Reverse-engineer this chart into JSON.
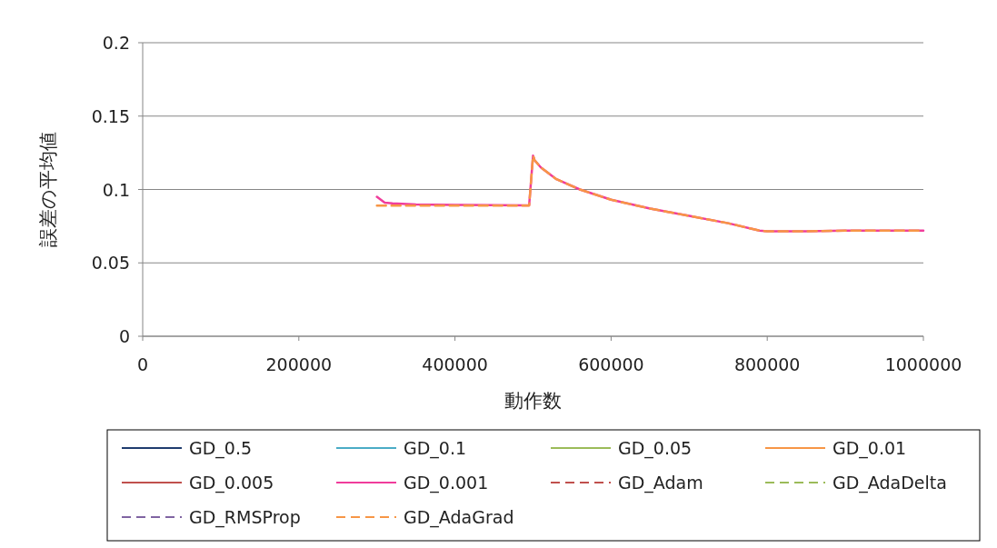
{
  "chart_data": {
    "type": "line",
    "xlabel": "動作数",
    "ylabel": "誤差の平均値",
    "xlim": [
      0,
      1000000
    ],
    "xticks": [
      0,
      200000,
      400000,
      600000,
      800000,
      1000000
    ],
    "ylim": [
      0,
      0.2
    ],
    "yticks": [
      0,
      0.05,
      0.1,
      0.15,
      0.2
    ],
    "grid": "y",
    "legend": "bottom",
    "marker": "none",
    "x": [
      300000,
      310000,
      320000,
      350000,
      400000,
      450000,
      495000,
      500000,
      502000,
      510000,
      530000,
      560000,
      600000,
      650000,
      700000,
      750000,
      790000,
      800000,
      850000,
      900000,
      950000,
      1000000
    ],
    "series": [
      {
        "name": "GD_0.5",
        "color": "#1f3c6e",
        "line_style": "solid",
        "values": [
          null,
          null,
          null,
          null,
          null,
          null,
          null,
          null,
          null,
          null,
          null,
          null,
          null,
          null,
          null,
          null,
          null,
          null,
          null,
          null,
          null,
          null
        ]
      },
      {
        "name": "GD_0.1",
        "color": "#4bacc6",
        "line_style": "solid",
        "values": [
          null,
          null,
          null,
          null,
          null,
          null,
          null,
          null,
          null,
          null,
          null,
          null,
          null,
          null,
          null,
          null,
          null,
          null,
          null,
          null,
          null,
          null
        ]
      },
      {
        "name": "GD_0.05",
        "color": "#9bbb59",
        "line_style": "solid",
        "values": [
          null,
          null,
          null,
          null,
          null,
          null,
          null,
          null,
          null,
          null,
          null,
          null,
          null,
          null,
          null,
          null,
          null,
          null,
          null,
          null,
          null,
          null
        ]
      },
      {
        "name": "GD_0.01",
        "color": "#f79646",
        "line_style": "solid",
        "values": [
          null,
          null,
          null,
          null,
          null,
          null,
          null,
          null,
          null,
          null,
          null,
          null,
          null,
          null,
          null,
          null,
          null,
          null,
          null,
          null,
          null,
          null
        ]
      },
      {
        "name": "GD_0.005",
        "color": "#c0504d",
        "line_style": "solid",
        "values": [
          null,
          null,
          null,
          null,
          null,
          null,
          null,
          null,
          null,
          null,
          null,
          null,
          null,
          null,
          null,
          null,
          null,
          null,
          null,
          null,
          null,
          null
        ]
      },
      {
        "name": "GD_0.001",
        "color": "#f03c9b",
        "line_style": "solid",
        "values": [
          0.095,
          0.091,
          0.0905,
          0.0898,
          0.0895,
          0.0893,
          0.0892,
          0.123,
          0.12,
          0.115,
          0.107,
          0.1,
          0.093,
          0.087,
          0.082,
          0.077,
          0.072,
          0.0715,
          0.0715,
          0.072,
          0.072,
          0.072
        ]
      },
      {
        "name": "GD_Adam",
        "color": "#c0504d",
        "line_style": "dashed",
        "values": [
          null,
          null,
          null,
          null,
          null,
          null,
          null,
          null,
          null,
          null,
          null,
          null,
          null,
          null,
          null,
          null,
          null,
          null,
          null,
          null,
          null,
          null
        ]
      },
      {
        "name": "GD_AdaDelta",
        "color": "#9bbb59",
        "line_style": "dashed",
        "values": [
          null,
          null,
          null,
          null,
          null,
          null,
          null,
          null,
          null,
          null,
          null,
          null,
          null,
          null,
          null,
          null,
          null,
          null,
          null,
          null,
          null,
          null
        ]
      },
      {
        "name": "GD_RMSProp",
        "color": "#8064a2",
        "line_style": "dashed",
        "values": [
          null,
          null,
          null,
          null,
          null,
          null,
          null,
          null,
          null,
          null,
          null,
          null,
          null,
          null,
          null,
          null,
          null,
          null,
          null,
          null,
          null,
          null
        ]
      },
      {
        "name": "GD_AdaGrad",
        "color": "#f79646",
        "line_style": "dashed",
        "values": [
          0.089,
          0.089,
          0.089,
          0.089,
          0.089,
          0.089,
          0.089,
          0.123,
          0.12,
          0.115,
          0.107,
          0.1,
          0.093,
          0.087,
          0.082,
          0.077,
          0.072,
          0.0715,
          0.0715,
          0.072,
          0.072,
          0.072
        ]
      }
    ]
  }
}
